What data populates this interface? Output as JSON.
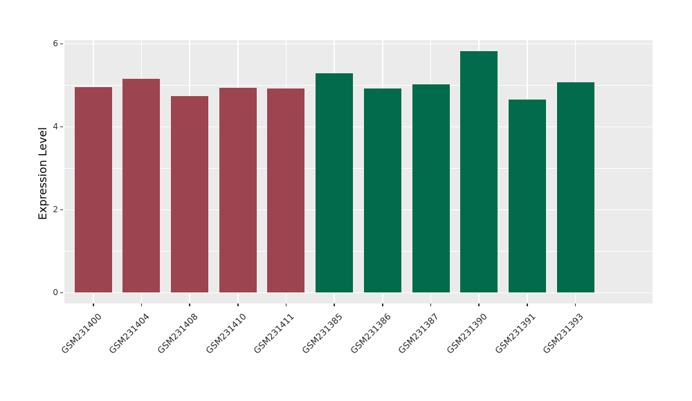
{
  "chart_data": {
    "type": "bar",
    "title": "",
    "xlabel": "",
    "ylabel": "Expression Level",
    "categories": [
      "GSM231400",
      "GSM231404",
      "GSM231408",
      "GSM231410",
      "GSM231411",
      "GSM231385",
      "GSM231386",
      "GSM231387",
      "GSM231390",
      "GSM231391",
      "GSM231393"
    ],
    "values": [
      4.95,
      5.15,
      4.74,
      4.94,
      4.92,
      5.29,
      4.92,
      5.02,
      5.82,
      4.66,
      5.08
    ],
    "bar_colors": [
      "#9C4450",
      "#9C4450",
      "#9C4450",
      "#9C4450",
      "#9C4450",
      "#026B4B",
      "#026B4B",
      "#026B4B",
      "#026B4B",
      "#026B4B",
      "#026B4B"
    ],
    "yticks": [
      0,
      2,
      4,
      6
    ],
    "yticks_minor": [
      1,
      3,
      5
    ],
    "ylim": [
      0,
      6
    ],
    "x_tick_rotation_deg": 45,
    "legend_position": "none",
    "panel_bg": "#EBEBEB",
    "grid_color": "#FFFFFF",
    "tick_text_color": "#333333",
    "axis_title_color": "#000000"
  }
}
